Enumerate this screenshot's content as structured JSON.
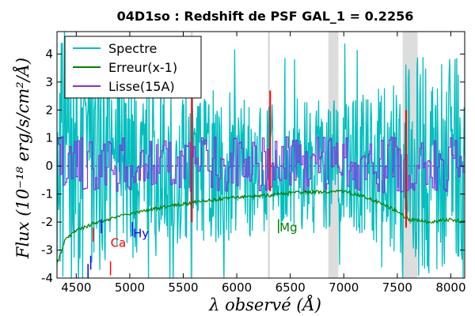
{
  "chart_data": {
    "type": "line",
    "title": "04D1so : Redshift de PSF GAL_1 = 0.2256",
    "xlabel": "λ observé (Å)",
    "ylabel": "Flux (10⁻¹⁸ erg/s/cm²/Å)",
    "xlim": [
      4320,
      8130
    ],
    "ylim": [
      -4.0,
      4.8
    ],
    "xticks": [
      4500,
      5000,
      5500,
      6000,
      6500,
      7000,
      7500,
      8000
    ],
    "yticks": [
      -4,
      -3,
      -2,
      -1,
      0,
      1,
      2,
      3,
      4
    ],
    "grid": false,
    "legend": {
      "position": "top-left",
      "entries": [
        "Spectre",
        "Erreur(x-1)",
        "Lisse(15A)"
      ]
    },
    "series": [
      {
        "name": "Spectre",
        "color": "#00bfbf",
        "x_range": [
          4320,
          8130
        ],
        "approx_amplitude": 2.5,
        "approx_mean": 0.0
      },
      {
        "name": "Erreur(x-1)",
        "color": "#008000",
        "x": [
          4320,
          4400,
          4500,
          4700,
          5000,
          5500,
          6000,
          6300,
          6500,
          7000,
          7200,
          7500,
          7600,
          7800,
          8000,
          8130
        ],
        "y": [
          -3.5,
          -2.6,
          -2.3,
          -2.0,
          -1.7,
          -1.35,
          -1.1,
          -1.05,
          -0.95,
          -0.9,
          -1.1,
          -1.6,
          -1.9,
          -2.0,
          -1.9,
          -2.0
        ]
      },
      {
        "name": "Lisse(15A)",
        "color": "#8a2be2",
        "x_range": [
          4320,
          8130
        ],
        "approx_amplitude": 1.0,
        "approx_mean": 0.05
      }
    ],
    "shaded_regions": [
      {
        "x": [
          5570,
          5590
        ],
        "color": "#dddddd"
      },
      {
        "x": [
          6290,
          6310
        ],
        "color": "#dddddd"
      },
      {
        "x": [
          6855,
          6950
        ],
        "color": "#dddddd"
      },
      {
        "x": [
          7550,
          7690
        ],
        "color": "#dddddd"
      }
    ],
    "vertical_markers": [
      {
        "x": 5580,
        "y": [
          -2.0,
          3.2
        ],
        "color": "#ff0000"
      },
      {
        "x": 6312,
        "y": [
          -0.9,
          2.7
        ],
        "color": "#ff0000"
      },
      {
        "x": 7582,
        "y": [
          -2.2,
          2.0
        ],
        "color": "#ff0000"
      }
    ],
    "annotations": [
      {
        "text": "Ca",
        "color": "#ff0000",
        "x": 4820,
        "y": -2.75,
        "ticks": [
          {
            "x": 4660,
            "y": [
              -2.7,
              -2.2
            ]
          },
          {
            "x": 4820,
            "y": [
              -3.9,
              -3.4
            ]
          }
        ]
      },
      {
        "text": "Hy",
        "color": "#0000ff",
        "x": 5030,
        "y": -2.4,
        "ticks": [
          {
            "x": 4610,
            "y": [
              -4.0,
              -3.5
            ]
          },
          {
            "x": 4635,
            "y": [
              -3.7,
              -3.2
            ]
          },
          {
            "x": 4735,
            "y": [
              -2.4,
              -1.9
            ]
          },
          {
            "x": 5025,
            "y": [
              -2.5,
              -2.0
            ]
          }
        ]
      },
      {
        "text": "Mg",
        "color": "#008000",
        "x": 6400,
        "y": -2.2,
        "ticks": [
          {
            "x": 6390,
            "y": [
              -2.4,
              -1.9
            ]
          }
        ]
      }
    ]
  }
}
